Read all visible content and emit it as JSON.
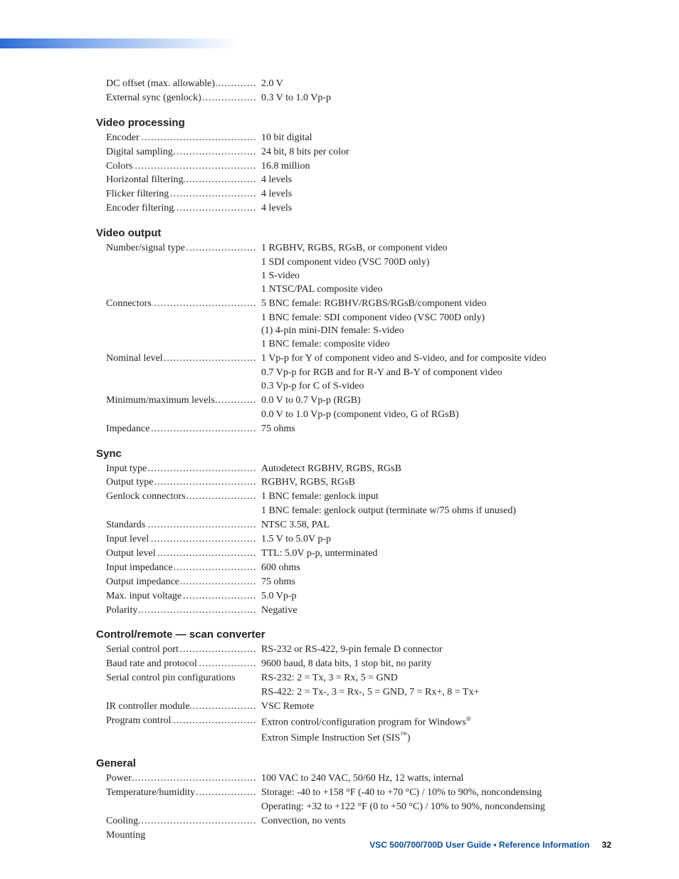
{
  "intro_rows": [
    {
      "label": "DC offset (max. allowable)",
      "value": "2.0 V"
    },
    {
      "label": "External sync (genlock)",
      "value": "0.3 V to 1.0 Vp-p"
    }
  ],
  "sections": [
    {
      "heading": "Video processing",
      "rows": [
        {
          "label": "Encoder",
          "value": "10 bit digital"
        },
        {
          "label": "Digital sampling",
          "value": "24 bit, 8 bits per color"
        },
        {
          "label": "Colors",
          "value": "16.8 million"
        },
        {
          "label": "Horizontal filtering",
          "value": "4 levels"
        },
        {
          "label": "Flicker filtering",
          "value": "4 levels"
        },
        {
          "label": "Encoder filtering",
          "value": "4 levels"
        }
      ]
    },
    {
      "heading": "Video output",
      "rows": [
        {
          "label": "Number/signal type",
          "value": "1 RGBHV, RGBS, RGsB, or component video",
          "cont": [
            "1 SDI component video (VSC 700D only)",
            "1 S-video",
            "1 NTSC/PAL composite video"
          ]
        },
        {
          "label": "Connectors",
          "value": "5 BNC female: RGBHV/RGBS/RGsB/component video",
          "cont": [
            "1 BNC female: SDI component video (VSC 700D only)",
            "(1) 4-pin mini-DIN female: S-video",
            "1 BNC female: composite video"
          ]
        },
        {
          "label": "Nominal level",
          "value": "1 Vp-p for Y of component video and S-video, and for composite video",
          "cont": [
            "0.7 Vp-p for RGB and for R-Y and B-Y of component video",
            "0.3 Vp-p for C of S-video"
          ]
        },
        {
          "label": "Minimum/maximum levels",
          "value": "0.0 V to 0.7 Vp-p (RGB)",
          "cont": [
            "0.0 V to 1.0 Vp-p (component video, G of RGsB)"
          ]
        },
        {
          "label": "Impedance",
          "value": "75 ohms"
        }
      ]
    },
    {
      "heading": "Sync",
      "rows": [
        {
          "label": "Input type",
          "value": "Autodetect RGBHV, RGBS, RGsB"
        },
        {
          "label": "Output type",
          "value": "RGBHV, RGBS, RGsB"
        },
        {
          "label": "Genlock connectors",
          "value": "1 BNC female: genlock input",
          "cont": [
            "1 BNC female: genlock output (terminate w/75 ohms if unused)"
          ]
        },
        {
          "label": "Standards",
          "value": "NTSC 3.58, PAL"
        },
        {
          "label": "Input level",
          "value": "1.5 V to 5.0V p-p"
        },
        {
          "label": "Output level",
          "value": "TTL: 5.0V p-p, unterminated"
        },
        {
          "label": "Input impedance",
          "value": "600 ohms"
        },
        {
          "label": "Output impedance",
          "value": "75 ohms"
        },
        {
          "label": "Max. input voltage",
          "value": "5.0 Vp-p"
        },
        {
          "label": "Polarity",
          "value": "Negative"
        }
      ]
    },
    {
      "heading": "Control/remote — scan converter",
      "rows": [
        {
          "label": "Serial control port",
          "value": "RS-232 or RS-422, 9-pin female D connector"
        },
        {
          "label": "Baud rate and protocol",
          "value": "9600 baud, 8 data bits, 1 stop bit, no parity"
        },
        {
          "label": "Serial control pin configurations",
          "nodots": true,
          "value": "RS-232: 2 = Tx, 3 = Rx, 5 = GND",
          "cont": [
            "RS-422: 2 = Tx-, 3 = Rx-, 5 = GND, 7 = Rx+, 8 = Tx+"
          ]
        },
        {
          "label": "IR controller module",
          "value": "VSC Remote"
        },
        {
          "label": "Program control",
          "value": "Extron control/configuration program for Windows<sup>®</sup>",
          "cont": [
            "Extron Simple Instruction Set (SIS<sup>™</sup>)"
          ]
        }
      ]
    },
    {
      "heading": "General",
      "rows": [
        {
          "label": "Power",
          "value": "100 VAC to 240 VAC, 50/60 Hz, 12 watts, internal"
        },
        {
          "label": "Temperature/humidity",
          "value": "Storage: -40 to +158 °F (-40 to +70 °C) / 10% to 90%, noncondensing",
          "cont": [
            "Operating: +32 to +122 °F (0 to +50 °C) / 10% to 90%, noncondensing"
          ]
        },
        {
          "label": "Cooling",
          "value": "Convection, no vents"
        },
        {
          "label": "Mounting",
          "nodots": true,
          "value": ""
        }
      ]
    }
  ],
  "footer": {
    "doc": "VSC 500/700/700D User Guide • Reference Information",
    "page": "32"
  }
}
